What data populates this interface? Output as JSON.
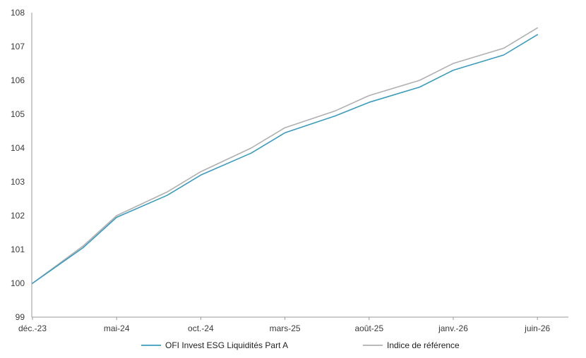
{
  "chart_data": {
    "type": "line",
    "title": "",
    "xlabel": "",
    "ylabel": "",
    "ylim": [
      99,
      108
    ],
    "yticks": [
      99,
      100,
      101,
      102,
      103,
      104,
      105,
      106,
      107,
      108
    ],
    "xticks": [
      "déc.-23",
      "mai-24",
      "oct.-24",
      "mars-25",
      "août-25",
      "janv.-26",
      "juin-26"
    ],
    "x": [
      "déc.-23",
      "mars-24",
      "mai-24",
      "août-24",
      "oct.-24",
      "janv.-25",
      "mars-25",
      "juin-25",
      "août-25",
      "nov.-25",
      "janv.-26",
      "avr.-26",
      "juin-26"
    ],
    "series": [
      {
        "name": "OFI Invest ESG Liquidités Part A",
        "color": "#3a9bbf",
        "values": [
          100.0,
          101.05,
          101.95,
          102.6,
          103.2,
          103.85,
          104.45,
          104.95,
          105.35,
          105.8,
          106.3,
          106.75,
          107.35
        ]
      },
      {
        "name": "Indice de référence",
        "color": "#b0b0b0",
        "values": [
          100.0,
          101.1,
          102.0,
          102.7,
          103.3,
          104.0,
          104.6,
          105.1,
          105.55,
          106.0,
          106.5,
          106.95,
          107.55
        ]
      }
    ],
    "grid": false,
    "legend": "bottom-center"
  }
}
